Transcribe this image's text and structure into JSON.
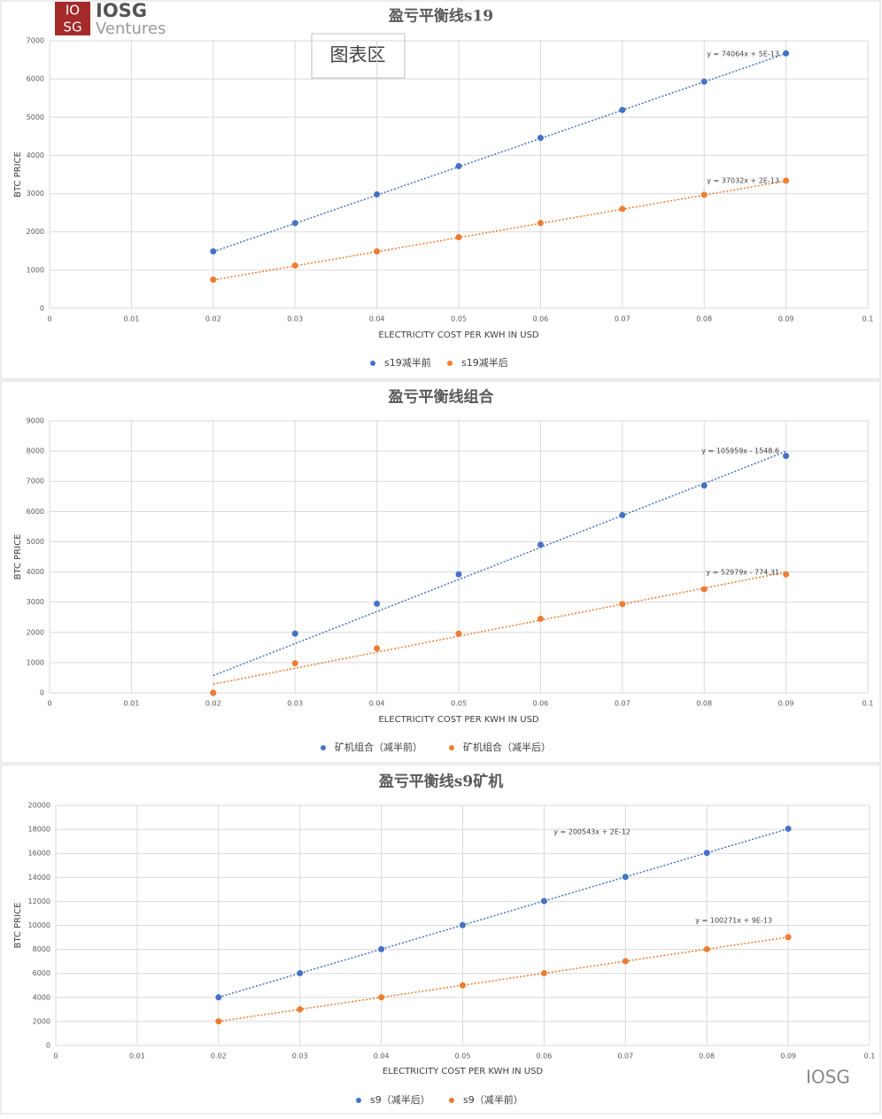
{
  "logo": {
    "mark_top": "IO",
    "mark_bottom": "SG",
    "name": "IOSG",
    "tagline": "Ventures"
  },
  "area_label": "图表区",
  "watermark": "IOSG",
  "chart_data": [
    {
      "type": "scatter",
      "title": "盈亏平衡线s19",
      "x_label": "ELECTRICITY COST PER KWH IN USD",
      "y_label": "BTC PRICE",
      "x": [
        0.02,
        0.03,
        0.04,
        0.05,
        0.06,
        0.07,
        0.08,
        0.09
      ],
      "series": [
        {
          "name": "s19减半前",
          "color": "#4472c4",
          "values": [
            1490,
            2230,
            2980,
            3720,
            4460,
            5190,
            5930,
            6670
          ],
          "trendline": {
            "label": "y = 74064x + 5E-13",
            "slope": 74064,
            "intercept": 5e-13
          }
        },
        {
          "name": "s19减半后",
          "color": "#ed7d31",
          "values": [
            750,
            1120,
            1490,
            1860,
            2230,
            2600,
            2970,
            3340
          ],
          "trendline": {
            "label": "y = 37032x + 2E-13",
            "slope": 37032,
            "intercept": 2e-13
          }
        }
      ],
      "xlim": [
        0,
        0.1
      ],
      "xticks": [
        0,
        0.01,
        0.02,
        0.03,
        0.04,
        0.05,
        0.06,
        0.07,
        0.08,
        0.09,
        0.1
      ],
      "ylim": [
        0,
        7000
      ],
      "yticks": [
        0,
        1000,
        2000,
        3000,
        4000,
        5000,
        6000,
        7000
      ],
      "grid": true,
      "legend": "bottom"
    },
    {
      "type": "scatter",
      "title": "盈亏平衡线组合",
      "x_label": "ELECTRICITY COST PER KWH IN USD",
      "y_label": "BTC PRICE",
      "x": [
        0.02,
        0.03,
        0.04,
        0.05,
        0.06,
        0.07,
        0.08,
        0.09
      ],
      "series": [
        {
          "name": "矿机组合（减半前）",
          "color": "#4472c4",
          "values": [
            0,
            1960,
            2950,
            3920,
            4900,
            5880,
            6860,
            7840
          ],
          "trendline": {
            "label": "y = 105959x - 1548.6",
            "slope": 105959,
            "intercept": -1548.6
          }
        },
        {
          "name": "矿机组合（减半后）",
          "color": "#ed7d31",
          "values": [
            0,
            980,
            1470,
            1960,
            2450,
            2940,
            3430,
            3920
          ],
          "trendline": {
            "label": "y = 52979x - 774.31",
            "slope": 52979,
            "intercept": -774.31
          }
        }
      ],
      "xlim": [
        0,
        0.1
      ],
      "xticks": [
        0,
        0.01,
        0.02,
        0.03,
        0.04,
        0.05,
        0.06,
        0.07,
        0.08,
        0.09,
        0.1
      ],
      "ylim": [
        0,
        9000
      ],
      "yticks": [
        0,
        1000,
        2000,
        3000,
        4000,
        5000,
        6000,
        7000,
        8000,
        9000
      ],
      "grid": true,
      "legend": "bottom"
    },
    {
      "type": "scatter",
      "title": "盈亏平衡线s9矿机",
      "x_label": "ELECTRICITY COST PER KWH IN USD",
      "y_label": "BTC PRICE",
      "x": [
        0.02,
        0.03,
        0.04,
        0.05,
        0.06,
        0.07,
        0.08,
        0.09
      ],
      "series": [
        {
          "name": "s9（减半后）",
          "color": "#4472c4",
          "values": [
            4010,
            6020,
            8020,
            10030,
            12030,
            14040,
            16040,
            18050
          ],
          "trendline": {
            "label": "y = 200543x + 2E-12",
            "slope": 200543,
            "intercept": 2e-12
          }
        },
        {
          "name": "s9（减半前）",
          "color": "#ed7d31",
          "values": [
            2010,
            3010,
            4010,
            5010,
            6020,
            7020,
            8020,
            9020
          ],
          "trendline": {
            "label": "y = 100271x + 9E-13",
            "slope": 100271,
            "intercept": 9e-13
          }
        }
      ],
      "xlim": [
        0,
        0.1
      ],
      "xticks": [
        0,
        0.01,
        0.02,
        0.03,
        0.04,
        0.05,
        0.06,
        0.07,
        0.08,
        0.09,
        0.1
      ],
      "ylim": [
        0,
        20000
      ],
      "yticks": [
        0,
        2000,
        4000,
        6000,
        8000,
        10000,
        12000,
        14000,
        16000,
        18000,
        20000
      ],
      "grid": true,
      "legend": "bottom"
    }
  ]
}
